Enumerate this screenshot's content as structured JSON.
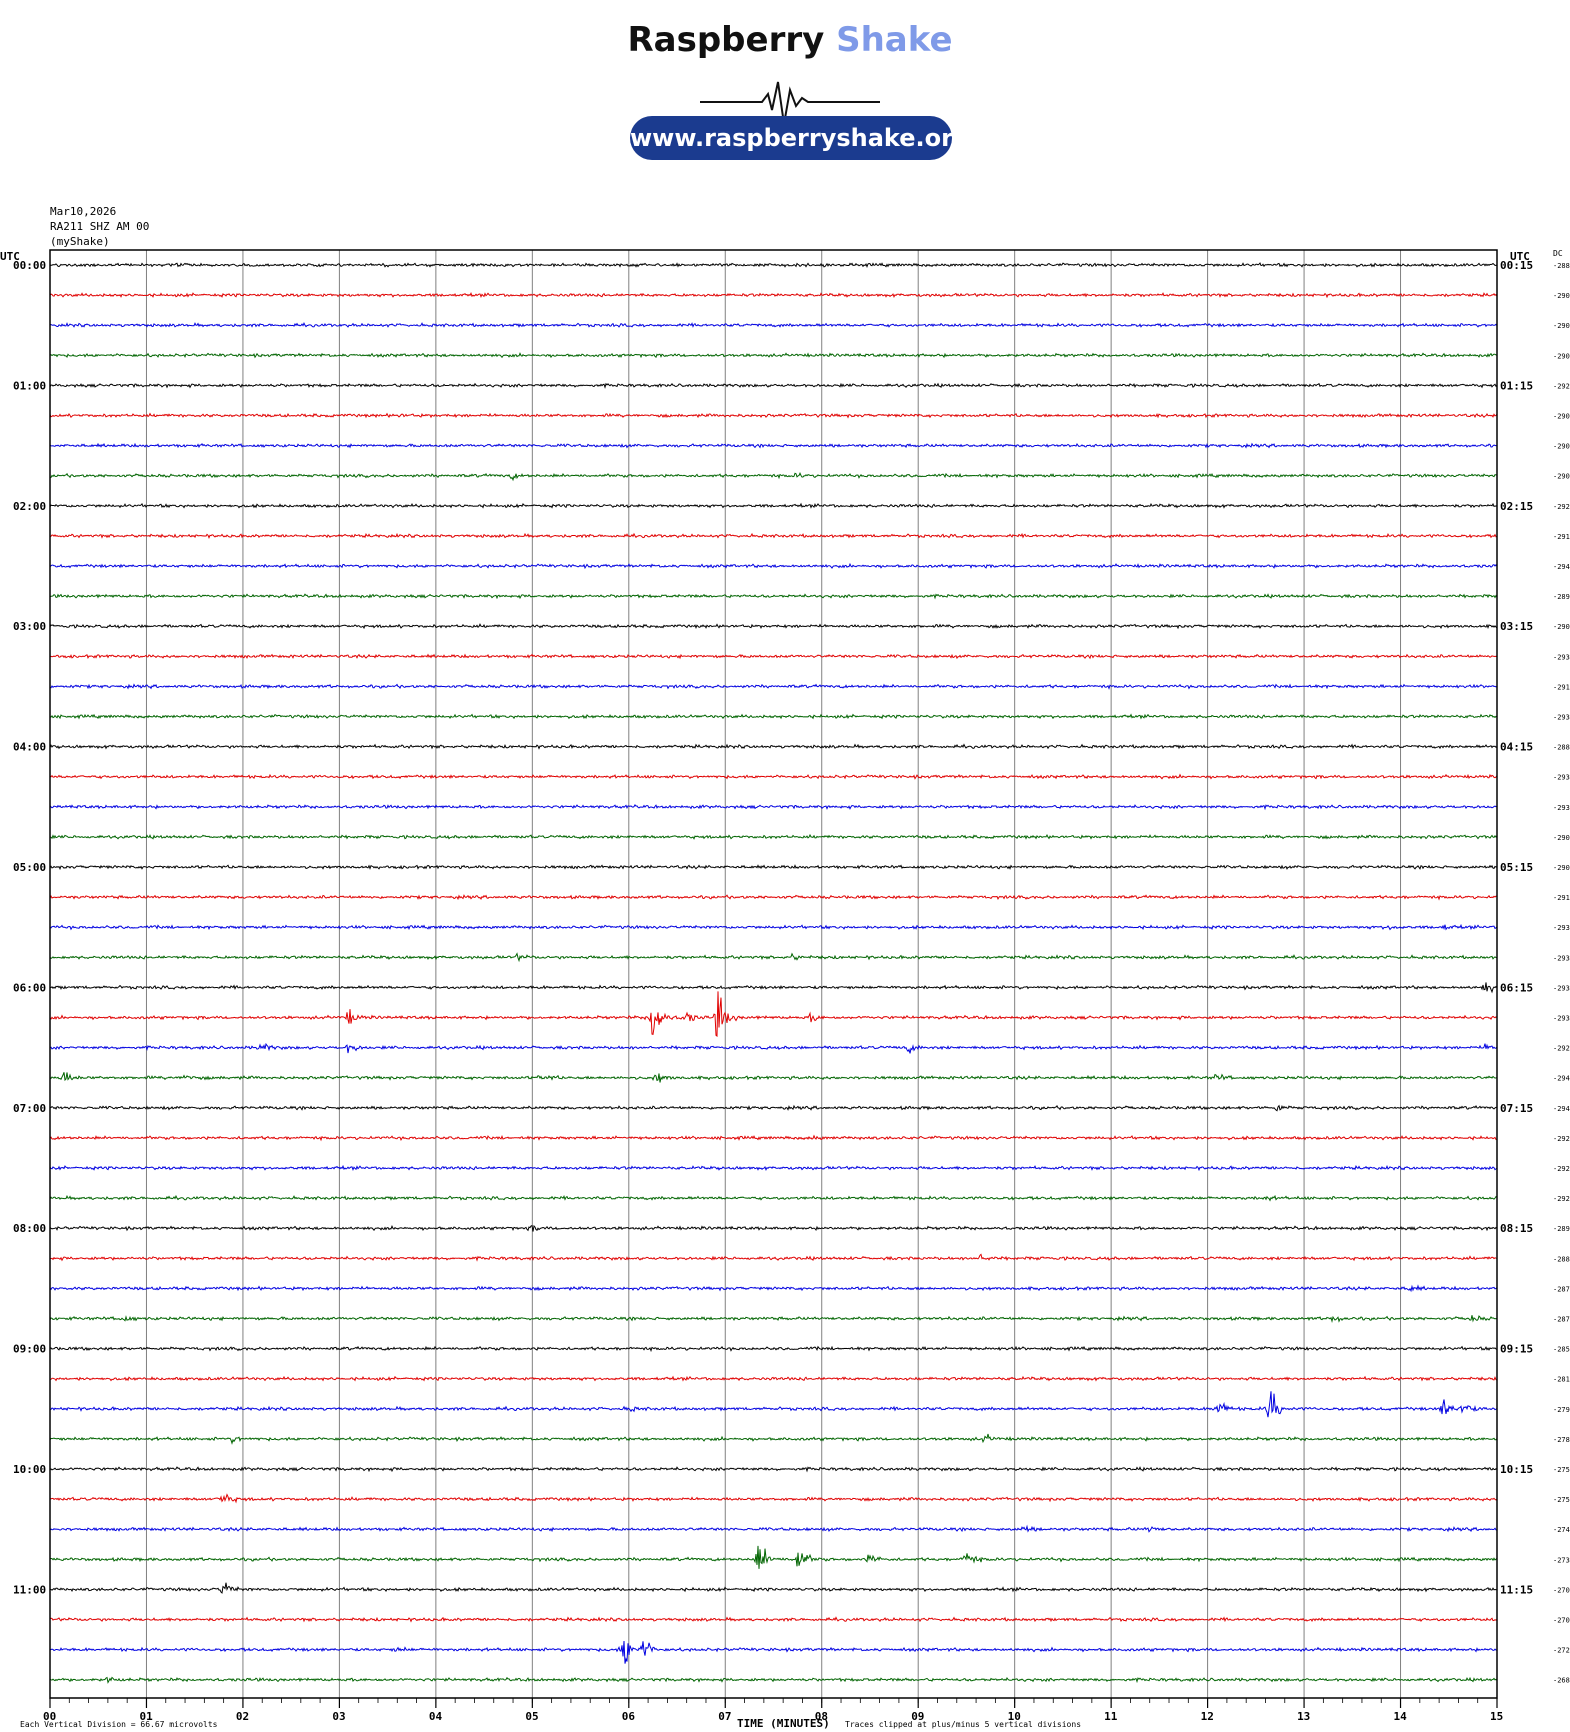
{
  "logo": {
    "word1": "Raspberry",
    "word2": "Shake",
    "url": "www.raspberryshake.org",
    "colors": {
      "dark": "#111111",
      "accent": "#7f9ae8",
      "pill": "#1b3b8f"
    }
  },
  "header": {
    "date": "Mar10,2026",
    "station": "RA211 SHZ AM 00",
    "source": "(myShake)"
  },
  "footer": {
    "division_note": "Each Vertical Division =   66.67 microvolts",
    "clip_note": "Traces clipped at plus/minus 5 vertical divisions"
  },
  "chart_data": {
    "type": "helicorder",
    "xlabel": "TIME (MINUTES)",
    "x_ticks": [
      "00",
      "01",
      "02",
      "03",
      "04",
      "05",
      "06",
      "07",
      "08",
      "09",
      "10",
      "11",
      "12",
      "13",
      "14",
      "15"
    ],
    "xlim": [
      0,
      15
    ],
    "left_axis_title": "UTC",
    "right_axis_title": "UTC",
    "dc_title": "DC",
    "trace_colors": [
      "#000000",
      "#e00000",
      "#0000e0",
      "#006400"
    ],
    "hour_labels_left": [
      "00:00",
      "01:00",
      "02:00",
      "03:00",
      "04:00",
      "05:00",
      "06:00",
      "07:00",
      "08:00",
      "09:00",
      "10:00",
      "11:00"
    ],
    "hour_labels_right": [
      "00:15",
      "01:15",
      "02:15",
      "03:15",
      "04:15",
      "05:15",
      "06:15",
      "07:15",
      "08:15",
      "09:15",
      "10:15",
      "11:15"
    ],
    "dc_offsets": [
      -288,
      -290,
      -290,
      -290,
      -292,
      -290,
      -290,
      -290,
      -292,
      -291,
      -294,
      -289,
      -290,
      -293,
      -291,
      -293,
      -288,
      -293,
      -293,
      -290,
      -290,
      -291,
      -293,
      -293,
      -293,
      -293,
      -292,
      -294,
      -294,
      -292,
      -292,
      -292,
      -289,
      -288,
      -287,
      -287,
      -285,
      -281,
      -279,
      -278,
      -275,
      -275,
      -274,
      -273,
      -270,
      -270,
      -272,
      -268
    ],
    "events": [
      {
        "row": 5,
        "minute": 3.63,
        "amp": 0.2
      },
      {
        "row": 7,
        "minute": 4.8,
        "amp": 0.35
      },
      {
        "row": 7,
        "minute": 7.75,
        "amp": 0.3
      },
      {
        "row": 22,
        "minute": 13.9,
        "amp": 0.25
      },
      {
        "row": 22,
        "minute": 14.45,
        "amp": 0.3
      },
      {
        "row": 23,
        "minute": 4.85,
        "amp": 0.35
      },
      {
        "row": 23,
        "minute": 7.7,
        "amp": 0.4
      },
      {
        "row": 24,
        "minute": 14.88,
        "amp": 0.9
      },
      {
        "row": 25,
        "minute": 3.1,
        "amp": 1.1
      },
      {
        "row": 25,
        "minute": 6.25,
        "amp": 5
      },
      {
        "row": 25,
        "minute": 6.6,
        "amp": 0.9
      },
      {
        "row": 25,
        "minute": 6.93,
        "amp": 4
      },
      {
        "row": 25,
        "minute": 7.9,
        "amp": 0.6
      },
      {
        "row": 26,
        "minute": 2.2,
        "amp": 0.7
      },
      {
        "row": 26,
        "minute": 3.1,
        "amp": 0.8
      },
      {
        "row": 26,
        "minute": 8.9,
        "amp": 0.7
      },
      {
        "row": 26,
        "minute": 14.9,
        "amp": 0.5
      },
      {
        "row": 27,
        "minute": 0.15,
        "amp": 1
      },
      {
        "row": 27,
        "minute": 1.4,
        "amp": 0.6
      },
      {
        "row": 27,
        "minute": 5.1,
        "amp": 0.7
      },
      {
        "row": 27,
        "minute": 6.3,
        "amp": 0.8
      },
      {
        "row": 27,
        "minute": 12.1,
        "amp": 0.5
      },
      {
        "row": 28,
        "minute": 12.72,
        "amp": 0.5
      },
      {
        "row": 29,
        "minute": 7.9,
        "amp": 0.3
      },
      {
        "row": 31,
        "minute": 12.6,
        "amp": 0.3
      },
      {
        "row": 32,
        "minute": 5.0,
        "amp": 0.35
      },
      {
        "row": 33,
        "minute": 9.65,
        "amp": 0.45
      },
      {
        "row": 34,
        "minute": 14.1,
        "amp": 0.45
      },
      {
        "row": 35,
        "minute": 0.75,
        "amp": 0.6
      },
      {
        "row": 35,
        "minute": 13.3,
        "amp": 0.6
      },
      {
        "row": 35,
        "minute": 14.75,
        "amp": 0.5
      },
      {
        "row": 38,
        "minute": 12.1,
        "amp": 1.6
      },
      {
        "row": 38,
        "minute": 12.65,
        "amp": 3.5
      },
      {
        "row": 38,
        "minute": 14.45,
        "amp": 1.6
      },
      {
        "row": 38,
        "minute": 14.65,
        "amp": 1.2
      },
      {
        "row": 38,
        "minute": 6.0,
        "amp": 0.35
      },
      {
        "row": 39,
        "minute": 1.9,
        "amp": 0.45
      },
      {
        "row": 39,
        "minute": 9.7,
        "amp": 0.5
      },
      {
        "row": 41,
        "minute": 1.8,
        "amp": 1.1
      },
      {
        "row": 42,
        "minute": 10.1,
        "amp": 0.5
      },
      {
        "row": 42,
        "minute": 11.4,
        "amp": 0.4
      },
      {
        "row": 43,
        "minute": 7.35,
        "amp": 3.2
      },
      {
        "row": 43,
        "minute": 7.75,
        "amp": 2.8
      },
      {
        "row": 43,
        "minute": 8.5,
        "amp": 0.9
      },
      {
        "row": 43,
        "minute": 9.5,
        "amp": 1.2
      },
      {
        "row": 44,
        "minute": 1.8,
        "amp": 1.2
      },
      {
        "row": 46,
        "minute": 5.95,
        "amp": 3.6
      },
      {
        "row": 46,
        "minute": 6.15,
        "amp": 2
      },
      {
        "row": 46,
        "minute": 3.6,
        "amp": 0.3
      },
      {
        "row": 47,
        "minute": 0.6,
        "amp": 0.35
      }
    ]
  }
}
